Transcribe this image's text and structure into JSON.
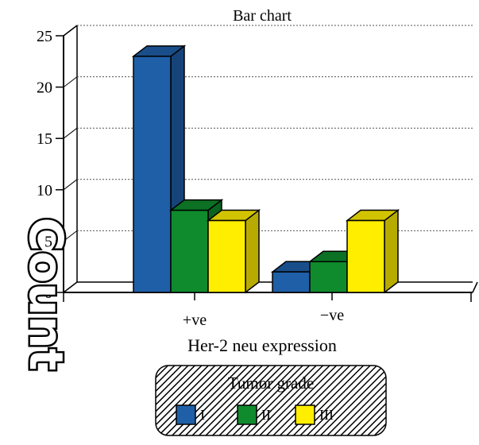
{
  "chart_data": {
    "type": "bar",
    "title": "Bar chart",
    "xlabel": "Her-2 neu expression",
    "ylabel": "Count",
    "categories": [
      "+ve",
      "−ve"
    ],
    "series": [
      {
        "name": "I",
        "color": "#1f5fa8",
        "values": [
          23,
          2
        ]
      },
      {
        "name": "II",
        "color": "#0f8a2c",
        "values": [
          8,
          3
        ]
      },
      {
        "name": "III",
        "color": "#ffee00",
        "values": [
          7,
          7
        ]
      }
    ],
    "yticks": [
      0,
      5,
      10,
      15,
      20,
      25
    ],
    "ylim": [
      0,
      25
    ],
    "grid": true,
    "legend": {
      "title": "Tumor grade",
      "placement": "bottom-center"
    }
  }
}
